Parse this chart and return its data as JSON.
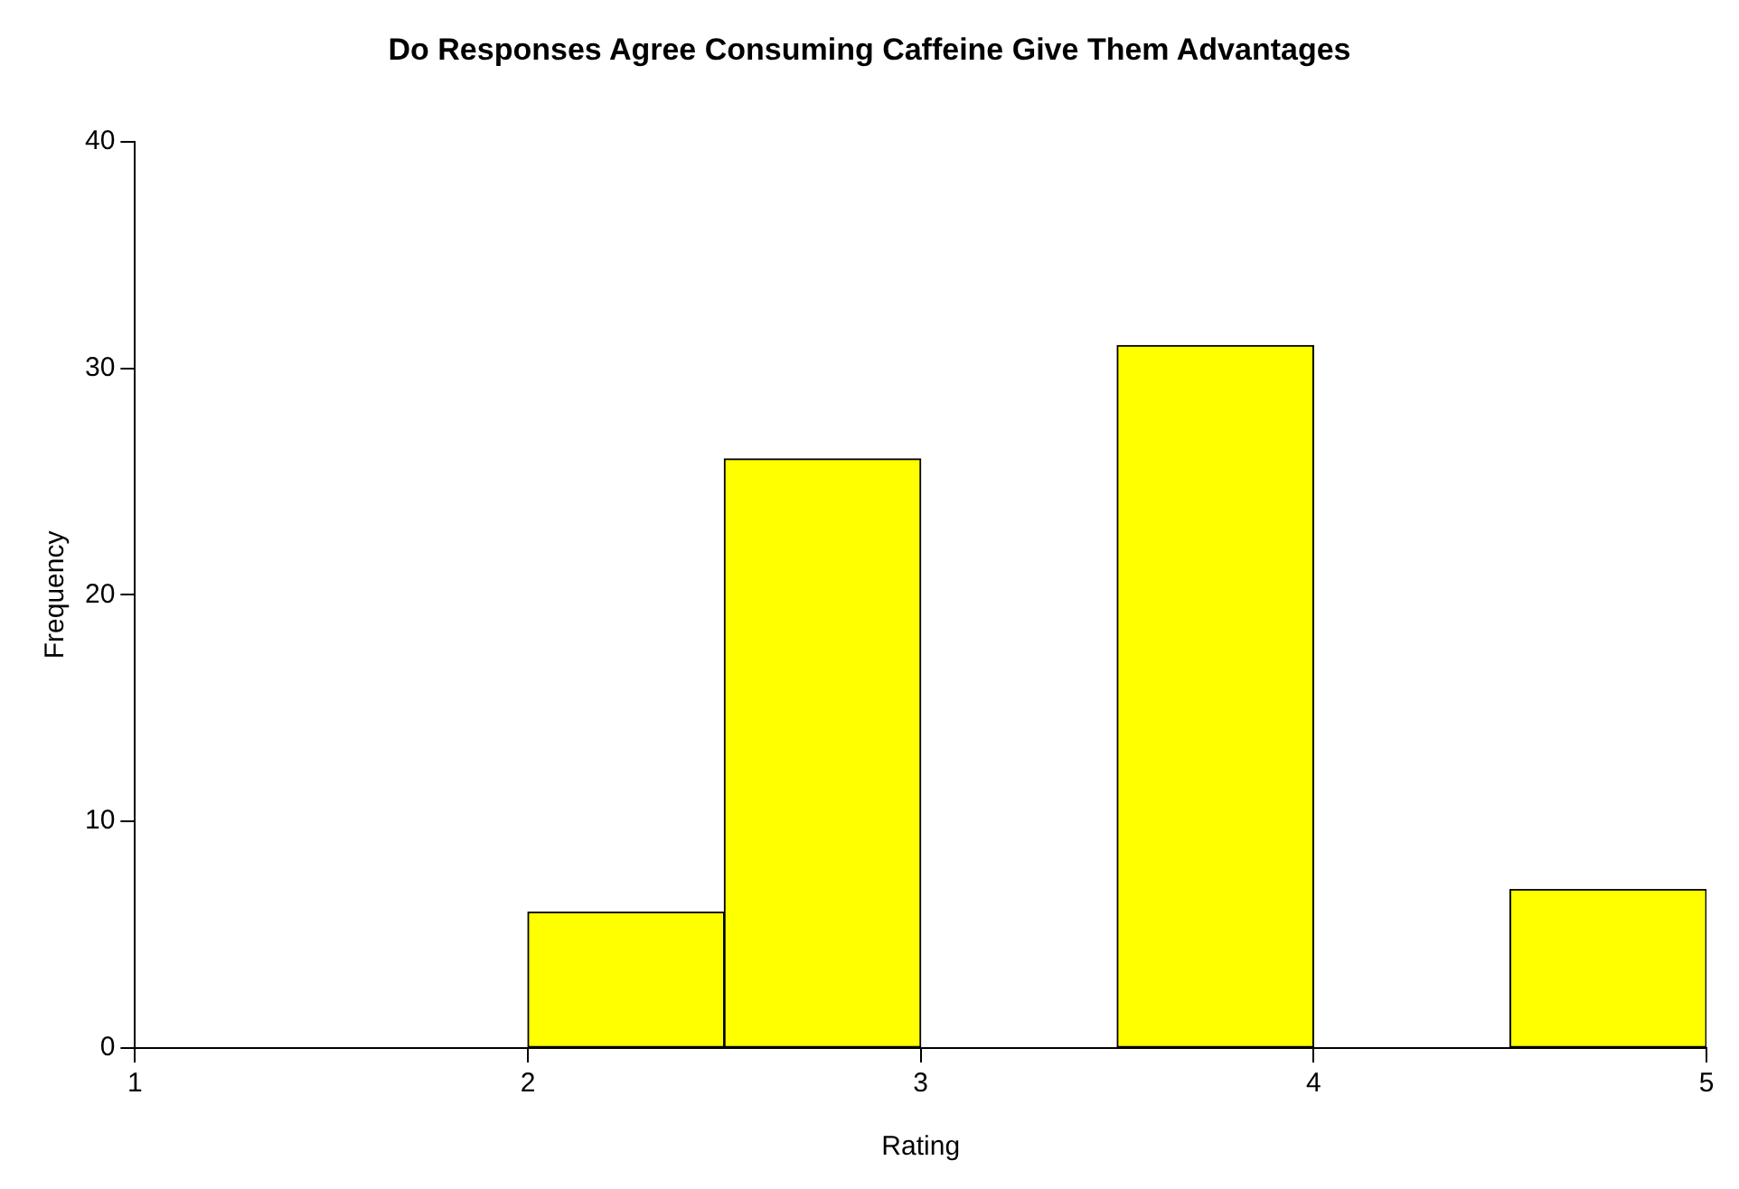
{
  "chart_data": {
    "type": "histogram",
    "title": "Do Responses Agree Consuming Caffeine Give Them Advantages",
    "xlabel": "Rating",
    "ylabel": "Frequency",
    "bins": [
      2,
      2.5,
      3,
      3.5,
      4,
      4.5,
      5
    ],
    "values": [
      6,
      26,
      0,
      31,
      0,
      7
    ],
    "color": "#ffff00",
    "xlim": [
      1,
      5
    ],
    "xticks": [
      1,
      2,
      3,
      4,
      5
    ],
    "ylim": [
      0,
      40
    ],
    "yticks": [
      0,
      10,
      20,
      30,
      40
    ],
    "grid": false,
    "legend": false
  }
}
